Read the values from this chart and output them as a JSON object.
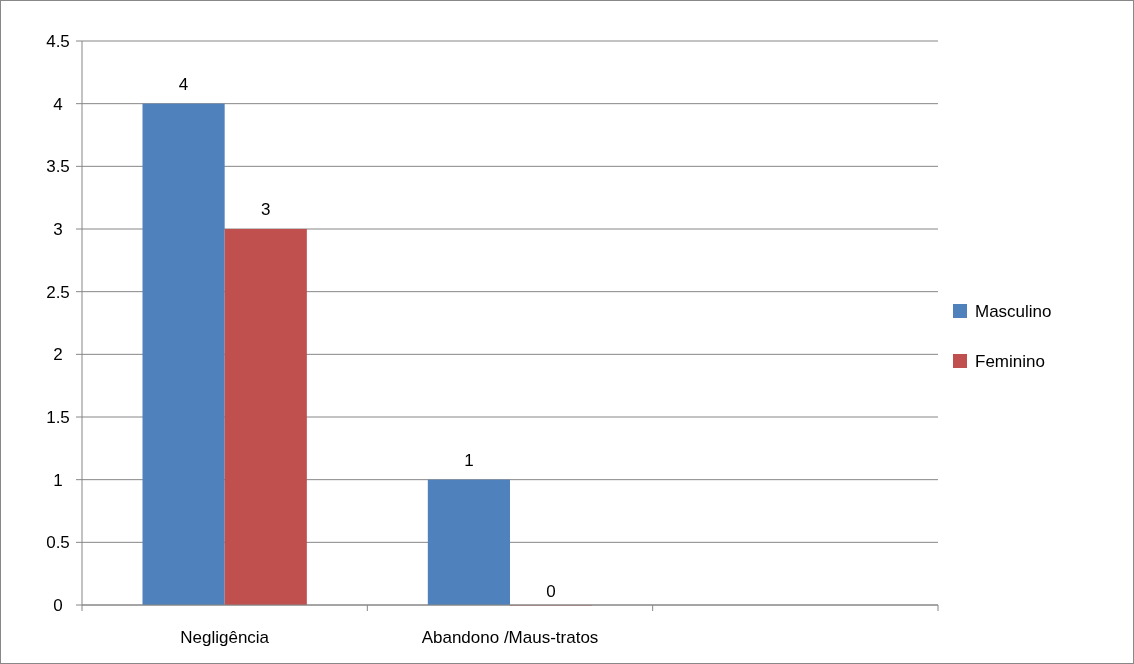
{
  "chart_data": {
    "type": "bar",
    "categories": [
      "Negligência",
      "Abandono /Maus-tratos",
      null
    ],
    "series": [
      {
        "name": "Masculino",
        "color": "#4f81bd",
        "values": [
          4,
          1,
          null
        ]
      },
      {
        "name": "Feminino",
        "color": "#c0504d",
        "values": [
          3,
          0,
          null
        ]
      }
    ],
    "ylim": [
      0,
      4.5
    ],
    "yticks": [
      0,
      0.5,
      1,
      1.5,
      2,
      2.5,
      3,
      3.5,
      4,
      4.5
    ],
    "grid": "y",
    "legend": "right",
    "data_labels": true
  }
}
